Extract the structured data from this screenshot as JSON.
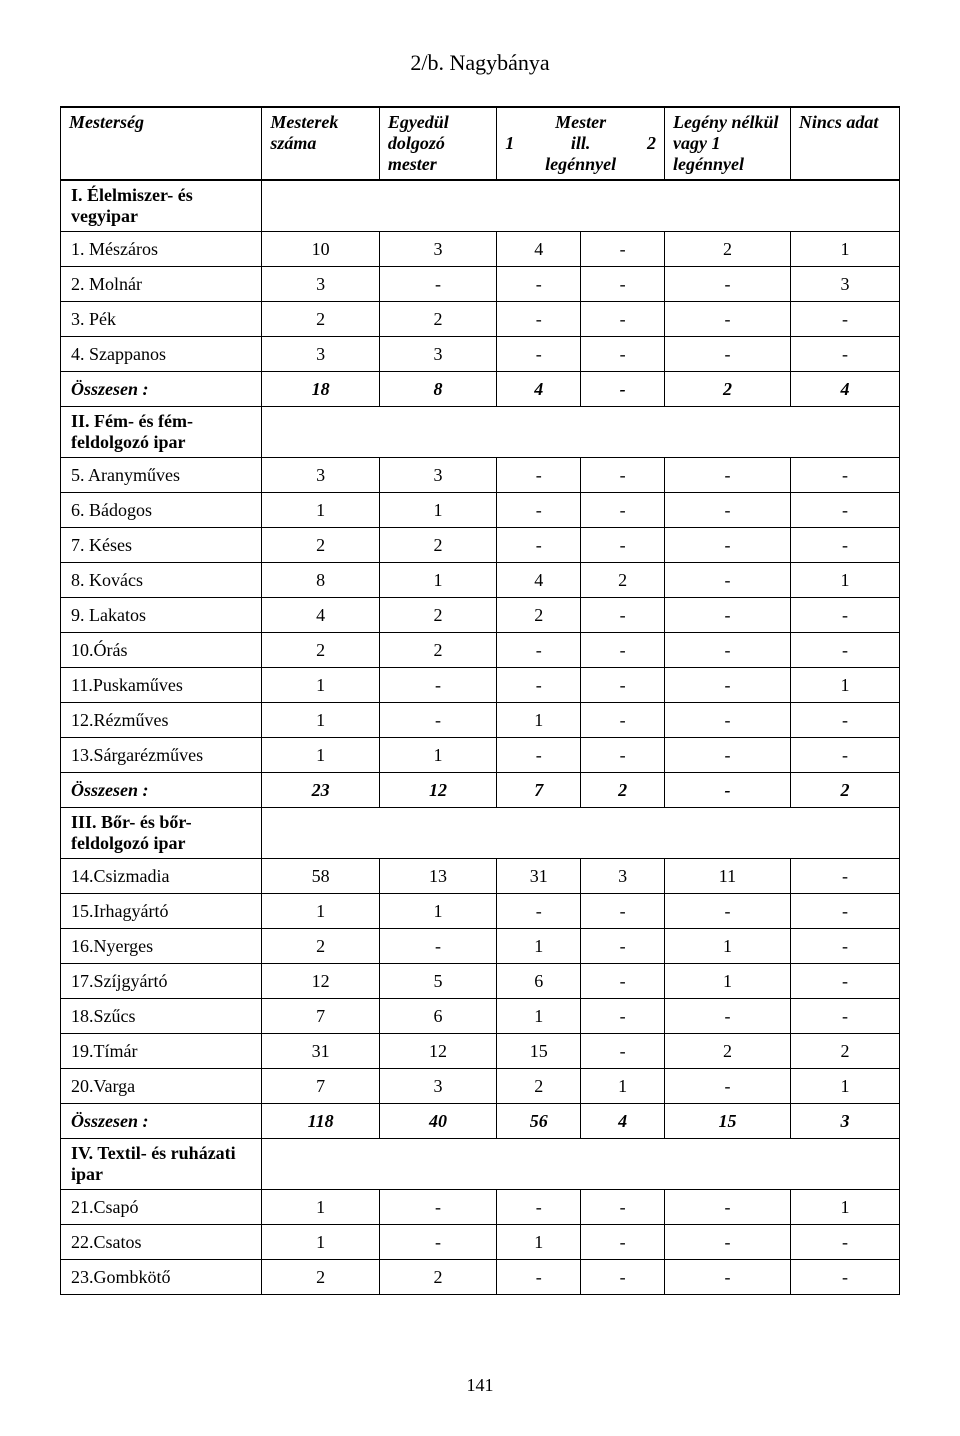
{
  "title": "2/b. Nagybánya",
  "page_number": "141",
  "headers": {
    "c0": "Mesterség",
    "c1": "Mesterek száma",
    "c2": "Egyedül dolgozó mester",
    "c3_top": "Mester",
    "c3_left": "1",
    "c3_mid": "ill.",
    "c3_right": "2",
    "c3_bottom": "legénnyel",
    "c5": "Legény nélkül vagy 1 legénnyel",
    "c6": "Nincs adat"
  },
  "rows": [
    {
      "type": "section",
      "label": "I. Élelmiszer-  és vegyipar"
    },
    {
      "type": "data",
      "label": "1. Mészáros",
      "v": [
        "10",
        "3",
        "4",
        "-",
        "2",
        "1"
      ]
    },
    {
      "type": "data",
      "label": "2. Molnár",
      "v": [
        "3",
        "-",
        "-",
        "-",
        "-",
        "3"
      ]
    },
    {
      "type": "data",
      "label": "3. Pék",
      "v": [
        "2",
        "2",
        "-",
        "-",
        "-",
        "-"
      ]
    },
    {
      "type": "data",
      "label": "4. Szappanos",
      "v": [
        "3",
        "3",
        "-",
        "-",
        "-",
        "-"
      ]
    },
    {
      "type": "summary",
      "label": "Összesen :",
      "v": [
        "18",
        "8",
        "4",
        "-",
        "2",
        "4"
      ]
    },
    {
      "type": "section",
      "label": "II. Fém- és fém-feldolgozó ipar"
    },
    {
      "type": "data",
      "label": "5. Aranyműves",
      "v": [
        "3",
        "3",
        "-",
        "-",
        "-",
        "-"
      ]
    },
    {
      "type": "data",
      "label": "6. Bádogos",
      "v": [
        "1",
        "1",
        "-",
        "-",
        "-",
        "-"
      ]
    },
    {
      "type": "data",
      "label": "7. Késes",
      "v": [
        "2",
        "2",
        "-",
        "-",
        "-",
        "-"
      ]
    },
    {
      "type": "data",
      "label": "8. Kovács",
      "v": [
        "8",
        "1",
        "4",
        "2",
        "-",
        "1"
      ]
    },
    {
      "type": "data",
      "label": "9. Lakatos",
      "v": [
        "4",
        "2",
        "2",
        "-",
        "-",
        "-"
      ]
    },
    {
      "type": "data",
      "label": "10.Órás",
      "v": [
        "2",
        "2",
        "-",
        "-",
        "-",
        "-"
      ]
    },
    {
      "type": "data",
      "label": "11.Puskaműves",
      "v": [
        "1",
        "-",
        "-",
        "-",
        "-",
        "1"
      ]
    },
    {
      "type": "data",
      "label": "12.Rézműves",
      "v": [
        "1",
        "-",
        "1",
        "-",
        "-",
        "-"
      ]
    },
    {
      "type": "data",
      "label": "13.Sárgarézműves",
      "v": [
        "1",
        "1",
        "-",
        "-",
        "-",
        "-"
      ]
    },
    {
      "type": "summary",
      "label": "Összesen :",
      "v": [
        "23",
        "12",
        "7",
        "2",
        "-",
        "2"
      ]
    },
    {
      "type": "section",
      "label": "III. Bőr- és bőr-feldolgozó ipar"
    },
    {
      "type": "data",
      "label": "14.Csizmadia",
      "v": [
        "58",
        "13",
        "31",
        "3",
        "11",
        "-"
      ]
    },
    {
      "type": "data",
      "label": "15.Irhagyártó",
      "v": [
        "1",
        "1",
        "-",
        "-",
        "-",
        "-"
      ]
    },
    {
      "type": "data",
      "label": "16.Nyerges",
      "v": [
        "2",
        "-",
        "1",
        "-",
        "1",
        "-"
      ]
    },
    {
      "type": "data",
      "label": "17.Szíjgyártó",
      "v": [
        "12",
        "5",
        "6",
        "-",
        "1",
        "-"
      ]
    },
    {
      "type": "data",
      "label": "18.Szűcs",
      "v": [
        "7",
        "6",
        "1",
        "-",
        "-",
        "-"
      ]
    },
    {
      "type": "data",
      "label": "19.Tímár",
      "v": [
        "31",
        "12",
        "15",
        "-",
        "2",
        "2"
      ]
    },
    {
      "type": "data",
      "label": "20.Varga",
      "v": [
        "7",
        "3",
        "2",
        "1",
        "-",
        "1"
      ]
    },
    {
      "type": "summary",
      "label": "Összesen :",
      "v": [
        "118",
        "40",
        "56",
        "4",
        "15",
        "3"
      ]
    },
    {
      "type": "section",
      "label": "IV. Textil- és ruházati ipar"
    },
    {
      "type": "data",
      "label": "21.Csapó",
      "v": [
        "1",
        "-",
        "-",
        "-",
        "-",
        "1"
      ]
    },
    {
      "type": "data",
      "label": "22.Csatos",
      "v": [
        "1",
        "-",
        "1",
        "-",
        "-",
        "-"
      ]
    },
    {
      "type": "data",
      "label": "23.Gombkötő",
      "v": [
        "2",
        "2",
        "-",
        "-",
        "-",
        "-"
      ]
    }
  ]
}
